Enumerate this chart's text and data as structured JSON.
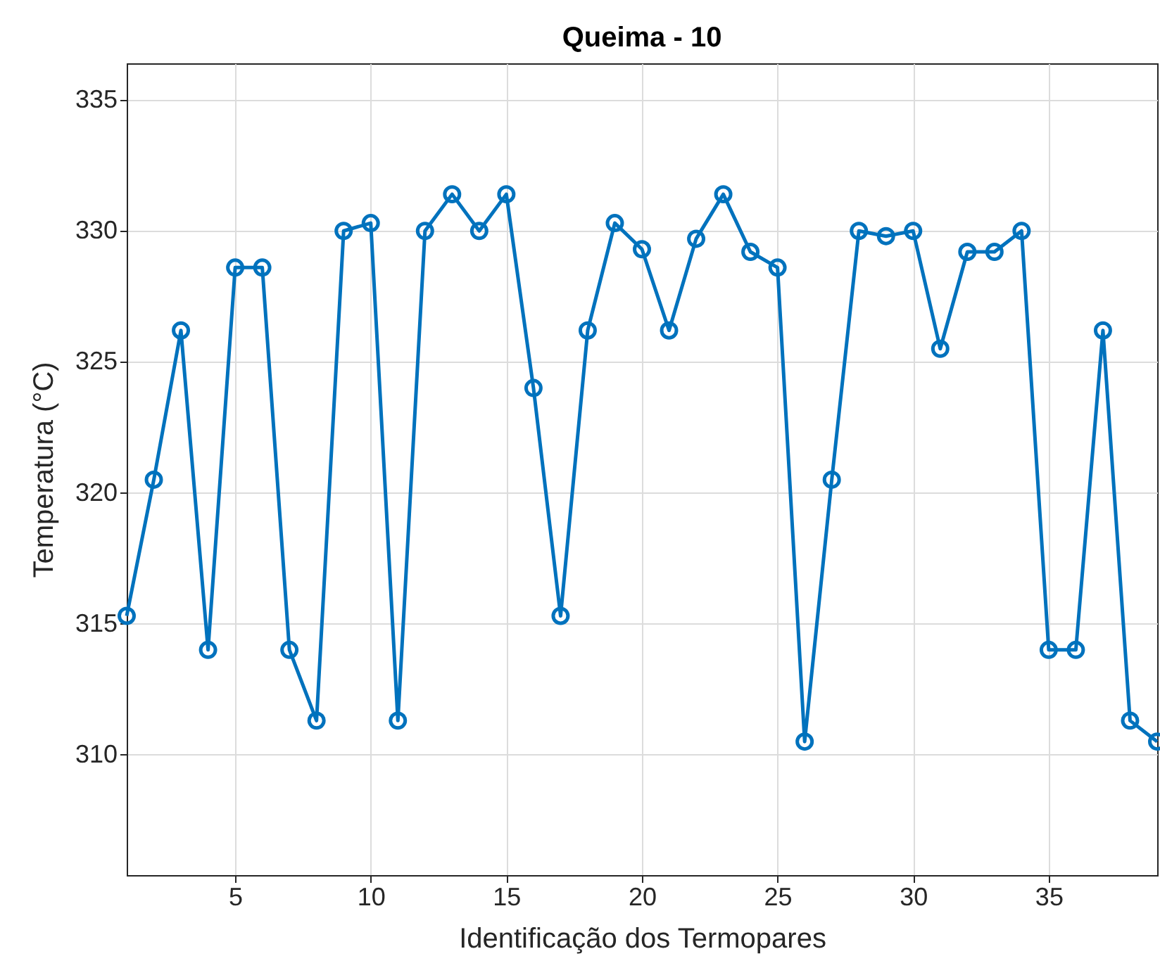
{
  "chart_data": {
    "type": "line",
    "title": "Queima - 10",
    "xlabel": "Identificação dos Termopares",
    "ylabel": "Temperatura (°C)",
    "x": [
      1,
      2,
      3,
      4,
      5,
      6,
      7,
      8,
      9,
      10,
      11,
      12,
      13,
      14,
      15,
      16,
      17,
      18,
      19,
      20,
      21,
      22,
      23,
      24,
      25,
      26,
      27,
      28,
      29,
      30,
      31,
      32,
      33,
      34,
      35,
      36,
      37,
      38,
      39
    ],
    "series": [
      {
        "color": "#0072bd",
        "values": [
          315.3,
          320.5,
          326.2,
          314.0,
          328.6,
          328.6,
          314.0,
          311.3,
          330.0,
          330.3,
          311.3,
          330.0,
          331.4,
          330.0,
          331.4,
          324.0,
          315.3,
          326.2,
          330.3,
          329.3,
          326.2,
          329.7,
          331.4,
          329.2,
          328.6,
          310.5,
          320.5,
          330.0,
          329.8,
          330.0,
          325.5,
          329.2,
          329.2,
          330.0,
          314.0,
          314.0,
          326.2,
          311.3,
          310.5
        ]
      }
    ],
    "xlim": [
      1,
      39
    ],
    "ylim": [
      305.4,
      336.4
    ],
    "xticks": [
      5,
      10,
      15,
      20,
      25,
      30,
      35
    ],
    "yticks": [
      310,
      315,
      320,
      325,
      330,
      335
    ],
    "grid": true,
    "marker": "circle",
    "line_style": "solid"
  }
}
